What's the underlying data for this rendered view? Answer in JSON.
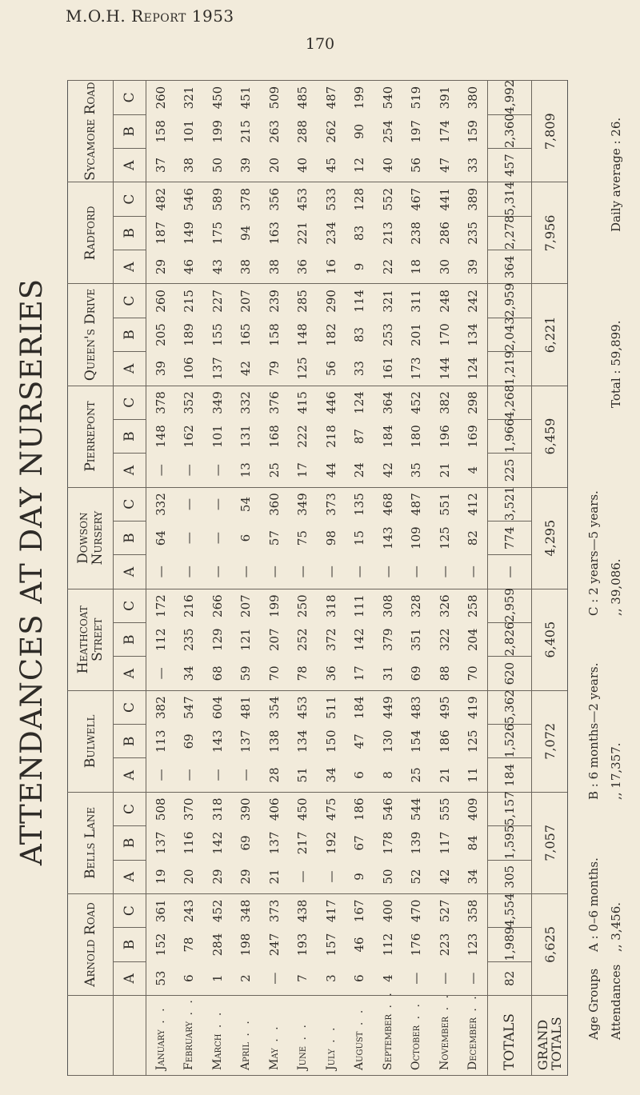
{
  "header": {
    "running_title": "M.O.H. Report 1953",
    "page_number": "170"
  },
  "title": "ATTENDANCES AT DAY NURSERIES",
  "age_labels": [
    "A",
    "B",
    "C"
  ],
  "months": [
    "January",
    "February",
    "March",
    "April",
    "May",
    "June",
    "July",
    "August",
    "September",
    "October",
    "November",
    "December"
  ],
  "totals_label": "TOTALS",
  "grand_totals_label": "GRAND TOTALS",
  "nurseries": [
    {
      "name": "Arnold Road",
      "A": [
        "53",
        "6",
        "1",
        "2",
        "—",
        "7",
        "3",
        "6",
        "4",
        "—",
        "—",
        "—"
      ],
      "B": [
        "152",
        "78",
        "284",
        "198",
        "247",
        "193",
        "157",
        "46",
        "112",
        "176",
        "223",
        "123"
      ],
      "C": [
        "361",
        "243",
        "452",
        "348",
        "373",
        "438",
        "417",
        "167",
        "400",
        "470",
        "527",
        "358"
      ],
      "totals": [
        "82",
        "1,989",
        "4,554"
      ],
      "grand_total": "6,625"
    },
    {
      "name": "Bells Lane",
      "A": [
        "19",
        "20",
        "29",
        "29",
        "21",
        "—",
        "—",
        "9",
        "50",
        "52",
        "42",
        "34"
      ],
      "B": [
        "137",
        "116",
        "142",
        "69",
        "137",
        "217",
        "192",
        "67",
        "178",
        "139",
        "117",
        "84"
      ],
      "C": [
        "508",
        "370",
        "318",
        "390",
        "406",
        "450",
        "475",
        "186",
        "546",
        "544",
        "555",
        "409"
      ],
      "totals": [
        "305",
        "1,595",
        "5,157"
      ],
      "grand_total": "7,057"
    },
    {
      "name": "Bulwell",
      "A": [
        "—",
        "—",
        "—",
        "—",
        "28",
        "51",
        "34",
        "6",
        "8",
        "25",
        "21",
        "11"
      ],
      "B": [
        "113",
        "69",
        "143",
        "137",
        "138",
        "134",
        "150",
        "47",
        "130",
        "154",
        "186",
        "125"
      ],
      "C": [
        "382",
        "547",
        "604",
        "481",
        "354",
        "453",
        "511",
        "184",
        "449",
        "483",
        "495",
        "419"
      ],
      "totals": [
        "184",
        "1,526",
        "5,362"
      ],
      "grand_total": "7,072"
    },
    {
      "name": "Heathcoat Street",
      "A": [
        "—",
        "34",
        "68",
        "59",
        "70",
        "78",
        "36",
        "17",
        "31",
        "69",
        "88",
        "70"
      ],
      "B": [
        "112",
        "235",
        "129",
        "121",
        "207",
        "252",
        "372",
        "142",
        "379",
        "351",
        "322",
        "204"
      ],
      "C": [
        "172",
        "216",
        "266",
        "207",
        "199",
        "250",
        "318",
        "111",
        "308",
        "328",
        "326",
        "258"
      ],
      "totals": [
        "620",
        "2,826",
        "2,959"
      ],
      "grand_total": "6,405"
    },
    {
      "name": "Dowson Nursery",
      "A": [
        "—",
        "—",
        "—",
        "—",
        "—",
        "—",
        "—",
        "—",
        "—",
        "—",
        "—",
        "—"
      ],
      "B": [
        "64",
        "—",
        "—",
        "6",
        "57",
        "75",
        "98",
        "15",
        "143",
        "109",
        "125",
        "82"
      ],
      "C": [
        "332",
        "—",
        "—",
        "54",
        "360",
        "349",
        "373",
        "135",
        "468",
        "487",
        "551",
        "412"
      ],
      "totals": [
        "—",
        "774",
        "3,521"
      ],
      "grand_total": "4,295"
    },
    {
      "name": "Pierrepont",
      "A": [
        "—",
        "—",
        "—",
        "13",
        "25",
        "17",
        "44",
        "24",
        "42",
        "35",
        "21",
        "4"
      ],
      "B": [
        "148",
        "162",
        "101",
        "131",
        "168",
        "222",
        "218",
        "87",
        "184",
        "180",
        "196",
        "169"
      ],
      "C": [
        "378",
        "352",
        "349",
        "332",
        "376",
        "415",
        "446",
        "124",
        "364",
        "452",
        "382",
        "298"
      ],
      "totals": [
        "225",
        "1,966",
        "4,268"
      ],
      "grand_total": "6,459"
    },
    {
      "name": "Queen's Drive",
      "A": [
        "39",
        "106",
        "137",
        "42",
        "79",
        "125",
        "56",
        "33",
        "161",
        "173",
        "144",
        "124"
      ],
      "B": [
        "205",
        "189",
        "155",
        "165",
        "158",
        "148",
        "182",
        "83",
        "253",
        "201",
        "170",
        "134"
      ],
      "C": [
        "260",
        "215",
        "227",
        "207",
        "239",
        "285",
        "290",
        "114",
        "321",
        "311",
        "248",
        "242"
      ],
      "totals": [
        "1,219",
        "2,043",
        "2,959"
      ],
      "grand_total": "6,221"
    },
    {
      "name": "Radford",
      "A": [
        "29",
        "46",
        "43",
        "38",
        "38",
        "36",
        "16",
        "9",
        "22",
        "18",
        "30",
        "39"
      ],
      "B": [
        "187",
        "149",
        "175",
        "94",
        "163",
        "221",
        "234",
        "83",
        "213",
        "238",
        "286",
        "235"
      ],
      "C": [
        "482",
        "546",
        "589",
        "378",
        "356",
        "453",
        "533",
        "128",
        "552",
        "467",
        "441",
        "389"
      ],
      "totals": [
        "364",
        "2,278",
        "5,314"
      ],
      "grand_total": "7,956"
    },
    {
      "name": "Sycamore Road",
      "A": [
        "37",
        "38",
        "50",
        "39",
        "20",
        "40",
        "45",
        "12",
        "40",
        "56",
        "47",
        "33"
      ],
      "B": [
        "158",
        "101",
        "199",
        "215",
        "263",
        "288",
        "262",
        "90",
        "254",
        "197",
        "174",
        "159"
      ],
      "C": [
        "260",
        "321",
        "450",
        "451",
        "509",
        "485",
        "487",
        "199",
        "540",
        "519",
        "391",
        "380"
      ],
      "totals": [
        "457",
        "2,360",
        "4,992"
      ],
      "grand_total": "7,809"
    }
  ],
  "footer": {
    "age_groups_label": "Age Groups",
    "attendances_label": "Attendances",
    "age_groups": [
      "A : 0–6 months.",
      "B : 6 months—2 years.",
      "C : 2 years—5 years."
    ],
    "attendances": [
      ",,  3,456.",
      ",,  17,357.",
      ",,  39,086."
    ],
    "total": "Total : 59,899.",
    "daily_average": "Daily average : 26."
  }
}
